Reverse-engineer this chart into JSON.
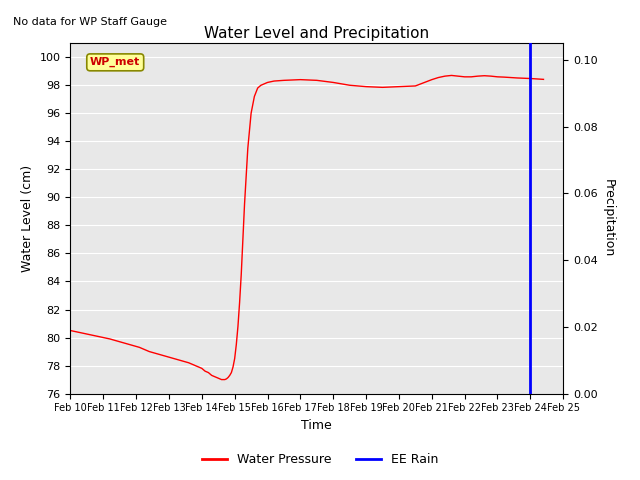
{
  "title": "Water Level and Precipitation",
  "top_left_text": "No data for WP Staff Gauge",
  "legend_box_text": "WP_met",
  "xlabel": "Time",
  "ylabel_left": "Water Level (cm)",
  "ylabel_right": "Precipitation",
  "ylim_left": [
    76,
    101
  ],
  "ylim_right": [
    0.0,
    0.105
  ],
  "yticks_left": [
    76,
    78,
    80,
    82,
    84,
    86,
    88,
    90,
    92,
    94,
    96,
    98,
    100
  ],
  "yticks_right": [
    0.0,
    0.02,
    0.04,
    0.06,
    0.08,
    0.1
  ],
  "xtick_labels": [
    "Feb 10",
    "Feb 11",
    "Feb 12",
    "Feb 13",
    "Feb 14",
    "Feb 15",
    "Feb 16",
    "Feb 17",
    "Feb 18",
    "Feb 19",
    "Feb 20",
    "Feb 21",
    "Feb 22",
    "Feb 23",
    "Feb 24",
    "Feb 25"
  ],
  "xlim": [
    0,
    15
  ],
  "water_pressure_color": "#FF0000",
  "ee_rain_color": "#0000FF",
  "background_color": "#E8E8E8",
  "grid_color": "#FFFFFF",
  "legend_box_bg": "#FFFF99",
  "legend_box_edge": "#888800",
  "blue_line_x": 14,
  "water_pressure_x": [
    0,
    0.3,
    0.6,
    0.9,
    1.2,
    1.5,
    1.8,
    2.1,
    2.4,
    2.7,
    3.0,
    3.3,
    3.6,
    3.9,
    4.0,
    4.1,
    4.2,
    4.3,
    4.35,
    4.4,
    4.45,
    4.5,
    4.55,
    4.6,
    4.65,
    4.7,
    4.75,
    4.8,
    4.85,
    4.9,
    4.95,
    5.0,
    5.05,
    5.1,
    5.15,
    5.2,
    5.25,
    5.3,
    5.35,
    5.4,
    5.5,
    5.6,
    5.7,
    5.8,
    5.9,
    6.0,
    6.2,
    6.5,
    7.0,
    7.5,
    8.0,
    8.5,
    9.0,
    9.5,
    10.0,
    10.5,
    11.0,
    11.2,
    11.4,
    11.6,
    11.8,
    12.0,
    12.2,
    12.4,
    12.6,
    12.8,
    13.0,
    13.2,
    13.4,
    13.6,
    13.8,
    14.0,
    14.2,
    14.4
  ],
  "water_pressure_y": [
    80.5,
    80.35,
    80.2,
    80.05,
    79.9,
    79.7,
    79.5,
    79.3,
    79.0,
    78.8,
    78.6,
    78.4,
    78.2,
    77.9,
    77.8,
    77.6,
    77.5,
    77.3,
    77.25,
    77.2,
    77.15,
    77.1,
    77.05,
    77.0,
    77.0,
    77.0,
    77.05,
    77.15,
    77.3,
    77.5,
    77.9,
    78.5,
    79.5,
    80.8,
    82.5,
    84.5,
    87.0,
    89.5,
    91.5,
    93.5,
    96.0,
    97.2,
    97.8,
    98.0,
    98.1,
    98.2,
    98.3,
    98.35,
    98.4,
    98.35,
    98.2,
    98.0,
    97.9,
    97.85,
    97.9,
    97.95,
    98.4,
    98.55,
    98.65,
    98.7,
    98.65,
    98.6,
    98.6,
    98.65,
    98.68,
    98.65,
    98.6,
    98.58,
    98.55,
    98.52,
    98.5,
    98.48,
    98.45,
    98.42
  ]
}
